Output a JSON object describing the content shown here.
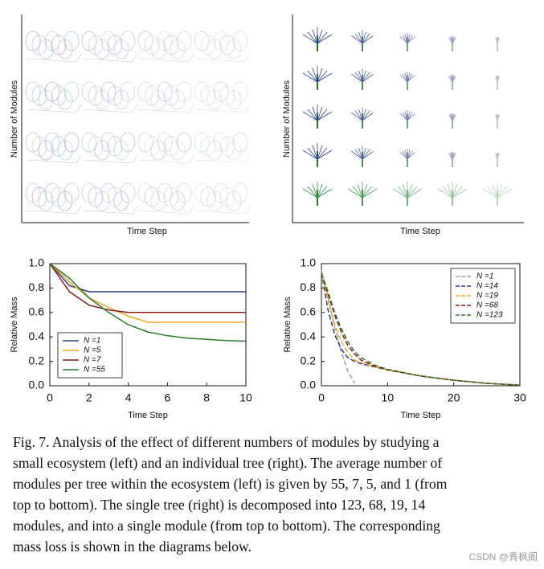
{
  "panels": [
    {
      "y_label": "Number of Modules",
      "x_label": "Time Step"
    },
    {
      "y_label": "Number of Modules",
      "x_label": "Time Step"
    }
  ],
  "chart_data": [
    {
      "type": "line",
      "x_label": "Time Step",
      "y_label": "Relative Mass",
      "x": [
        0,
        1,
        2,
        3,
        4,
        5,
        6,
        7,
        8,
        9,
        10
      ],
      "series": [
        {
          "name": "N =1",
          "color": "#2b3a8f",
          "values": [
            1.0,
            0.82,
            0.77,
            0.77,
            0.77,
            0.77,
            0.77,
            0.77,
            0.77,
            0.77,
            0.77
          ]
        },
        {
          "name": "N =5",
          "color": "#f2a81d",
          "values": [
            1.0,
            0.85,
            0.72,
            0.64,
            0.57,
            0.52,
            0.52,
            0.52,
            0.52,
            0.52,
            0.52
          ]
        },
        {
          "name": "N =7",
          "color": "#8b1a1a",
          "values": [
            1.0,
            0.77,
            0.66,
            0.62,
            0.6,
            0.6,
            0.6,
            0.6,
            0.6,
            0.6,
            0.6
          ]
        },
        {
          "name": "N =55",
          "color": "#2a7a2a",
          "values": [
            1.0,
            0.88,
            0.72,
            0.6,
            0.5,
            0.44,
            0.41,
            0.39,
            0.38,
            0.37,
            0.365
          ]
        }
      ],
      "xlim": [
        0,
        10
      ],
      "xticks": [
        0,
        2,
        4,
        6,
        8,
        10
      ],
      "ylim": [
        0,
        1
      ],
      "yticks": [
        {
          "value": 0,
          "label": "0.0"
        },
        0.2,
        0.4,
        0.6,
        0.8,
        {
          "value": 1,
          "label": "1.0"
        }
      ],
      "dashed": false,
      "legend": "lower left"
    },
    {
      "type": "line",
      "x_label": "Time Step",
      "y_label": "Relative Mass",
      "x": [
        0,
        1,
        2,
        3,
        4,
        5,
        6,
        8,
        10,
        15,
        20,
        25,
        30
      ],
      "series": [
        {
          "name": "N =1",
          "color": "#a0a0a0",
          "values": [
            0.95,
            0.72,
            0.48,
            0.28,
            0.12,
            0.02,
            null,
            null,
            null,
            null,
            null,
            null,
            null
          ]
        },
        {
          "name": "N =14",
          "color": "#2b3a8f",
          "values": [
            0.93,
            0.62,
            0.42,
            0.3,
            0.23,
            0.2,
            0.18,
            0.155,
            0.13,
            0.08,
            0.045,
            0.02,
            0.005
          ]
        },
        {
          "name": "N =19",
          "color": "#f2a81d",
          "values": [
            0.93,
            0.7,
            0.5,
            0.36,
            0.27,
            0.21,
            0.19,
            0.155,
            0.13,
            0.08,
            0.045,
            0.02,
            0.005
          ]
        },
        {
          "name": "N =68",
          "color": "#8b1a1a",
          "values": [
            0.92,
            0.75,
            0.58,
            0.44,
            0.33,
            0.26,
            0.21,
            0.16,
            0.13,
            0.08,
            0.045,
            0.02,
            0.005
          ]
        },
        {
          "name": "N =123",
          "color": "#2a7a2a",
          "values": [
            0.92,
            0.77,
            0.6,
            0.47,
            0.36,
            0.28,
            0.23,
            0.17,
            0.135,
            0.08,
            0.045,
            0.02,
            0.005
          ]
        }
      ],
      "xlim": [
        0,
        30
      ],
      "xticks": [
        0,
        10,
        20,
        30
      ],
      "ylim": [
        0,
        1
      ],
      "yticks": [
        {
          "value": 0,
          "label": "0.0"
        },
        0.2,
        0.4,
        0.6,
        0.8,
        {
          "value": 1,
          "label": "1.0"
        }
      ],
      "dashed": true,
      "legend": "upper right"
    }
  ],
  "caption_lines": [
    "Fig. 7.  Analysis of the effect of different numbers of modules by studying a",
    "small ecosystem (left) and an individual tree (right). The average number of",
    "modules per tree within the ecosystem (left) is given by 55, 7, 5, and 1 (from",
    "top to bottom). The single tree (right) is decomposed into 123, 68, 19, 14",
    "modules, and into a single module (from top to bottom). The corresponding",
    "mass loss is shown in the diagrams below."
  ],
  "watermark": "CSDN @青枫阁"
}
